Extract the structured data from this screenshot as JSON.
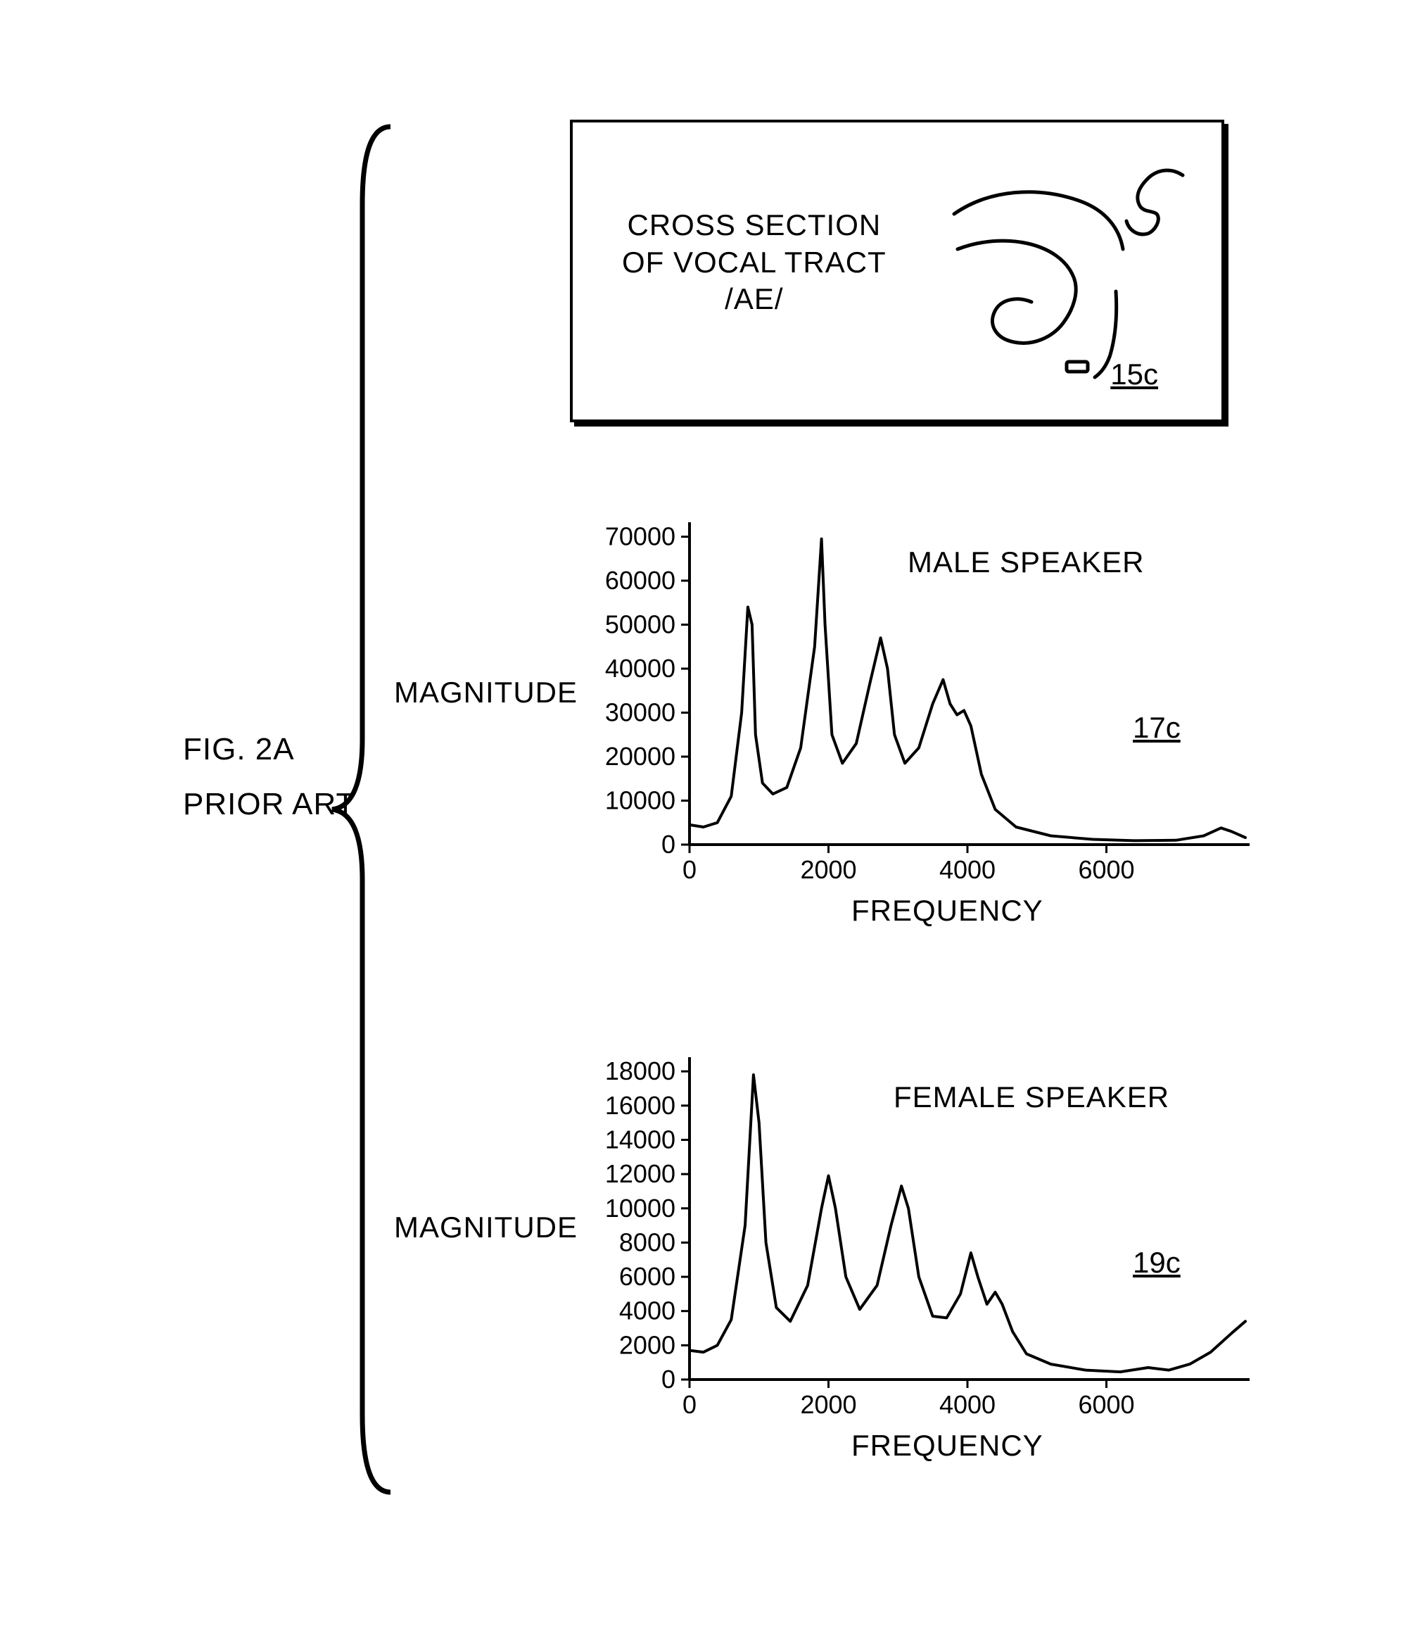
{
  "figure": {
    "label_line1": "FIG. 2A",
    "label_line2": "PRIOR ART",
    "label_fontsize": 44
  },
  "panel": {
    "text_line1": "CROSS SECTION",
    "text_line2": "OF VOCAL TRACT",
    "text_line3": "/AE/",
    "ref": "15c",
    "border_color": "#000000",
    "bg_color": "#ffffff",
    "shadow_offset": 6
  },
  "colors": {
    "stroke": "#000000",
    "background": "#ffffff"
  },
  "male_chart": {
    "type": "line",
    "title": "MALE SPEAKER",
    "ref": "17c",
    "ylabel": "MAGNITUDE",
    "xlabel": "FREQUENCY",
    "xlim": [
      0,
      8000
    ],
    "ylim": [
      0,
      72000
    ],
    "xticks": [
      0,
      2000,
      4000,
      6000
    ],
    "yticks": [
      0,
      10000,
      20000,
      30000,
      40000,
      50000,
      60000,
      70000
    ],
    "line_color": "#000000",
    "line_width": 4,
    "axis_color": "#000000",
    "axis_width": 4,
    "tick_fontsize": 36,
    "label_fontsize": 42,
    "data": [
      [
        0,
        4500
      ],
      [
        200,
        4000
      ],
      [
        400,
        5000
      ],
      [
        600,
        11000
      ],
      [
        750,
        30000
      ],
      [
        840,
        54000
      ],
      [
        900,
        50000
      ],
      [
        950,
        25000
      ],
      [
        1050,
        14000
      ],
      [
        1200,
        11500
      ],
      [
        1400,
        13000
      ],
      [
        1600,
        22000
      ],
      [
        1800,
        45000
      ],
      [
        1900,
        69500
      ],
      [
        1950,
        50000
      ],
      [
        2050,
        25000
      ],
      [
        2200,
        18500
      ],
      [
        2400,
        23000
      ],
      [
        2600,
        37000
      ],
      [
        2750,
        47000
      ],
      [
        2850,
        40000
      ],
      [
        2950,
        25000
      ],
      [
        3100,
        18500
      ],
      [
        3300,
        22000
      ],
      [
        3500,
        32000
      ],
      [
        3650,
        37500
      ],
      [
        3750,
        32000
      ],
      [
        3850,
        29500
      ],
      [
        3950,
        30500
      ],
      [
        4050,
        27000
      ],
      [
        4200,
        16000
      ],
      [
        4400,
        8000
      ],
      [
        4700,
        4000
      ],
      [
        5200,
        2000
      ],
      [
        5800,
        1200
      ],
      [
        6400,
        900
      ],
      [
        7000,
        1000
      ],
      [
        7400,
        2000
      ],
      [
        7650,
        3800
      ],
      [
        7800,
        3000
      ],
      [
        8000,
        1600
      ]
    ]
  },
  "female_chart": {
    "type": "line",
    "title": "FEMALE SPEAKER",
    "ref": "19c",
    "ylabel": "MAGNITUDE",
    "xlabel": "FREQUENCY",
    "xlim": [
      0,
      8000
    ],
    "ylim": [
      0,
      18500
    ],
    "xticks": [
      0,
      2000,
      4000,
      6000
    ],
    "yticks": [
      0,
      2000,
      4000,
      6000,
      8000,
      10000,
      12000,
      14000,
      16000,
      18000
    ],
    "line_color": "#000000",
    "line_width": 4,
    "axis_color": "#000000",
    "axis_width": 4,
    "tick_fontsize": 36,
    "label_fontsize": 42,
    "data": [
      [
        0,
        1700
      ],
      [
        200,
        1600
      ],
      [
        400,
        2000
      ],
      [
        600,
        3500
      ],
      [
        800,
        9000
      ],
      [
        920,
        17800
      ],
      [
        1000,
        15000
      ],
      [
        1100,
        8000
      ],
      [
        1250,
        4200
      ],
      [
        1450,
        3400
      ],
      [
        1700,
        5500
      ],
      [
        1900,
        10000
      ],
      [
        2000,
        11900
      ],
      [
        2100,
        10000
      ],
      [
        2250,
        6000
      ],
      [
        2450,
        4100
      ],
      [
        2700,
        5500
      ],
      [
        2900,
        9000
      ],
      [
        3050,
        11300
      ],
      [
        3150,
        10000
      ],
      [
        3300,
        6000
      ],
      [
        3500,
        3700
      ],
      [
        3700,
        3600
      ],
      [
        3900,
        5000
      ],
      [
        4050,
        7400
      ],
      [
        4150,
        6000
      ],
      [
        4280,
        4400
      ],
      [
        4400,
        5100
      ],
      [
        4500,
        4400
      ],
      [
        4650,
        2800
      ],
      [
        4850,
        1500
      ],
      [
        5200,
        900
      ],
      [
        5700,
        550
      ],
      [
        6200,
        450
      ],
      [
        6600,
        700
      ],
      [
        6900,
        550
      ],
      [
        7200,
        900
      ],
      [
        7500,
        1600
      ],
      [
        7800,
        2700
      ],
      [
        8000,
        3400
      ]
    ]
  }
}
